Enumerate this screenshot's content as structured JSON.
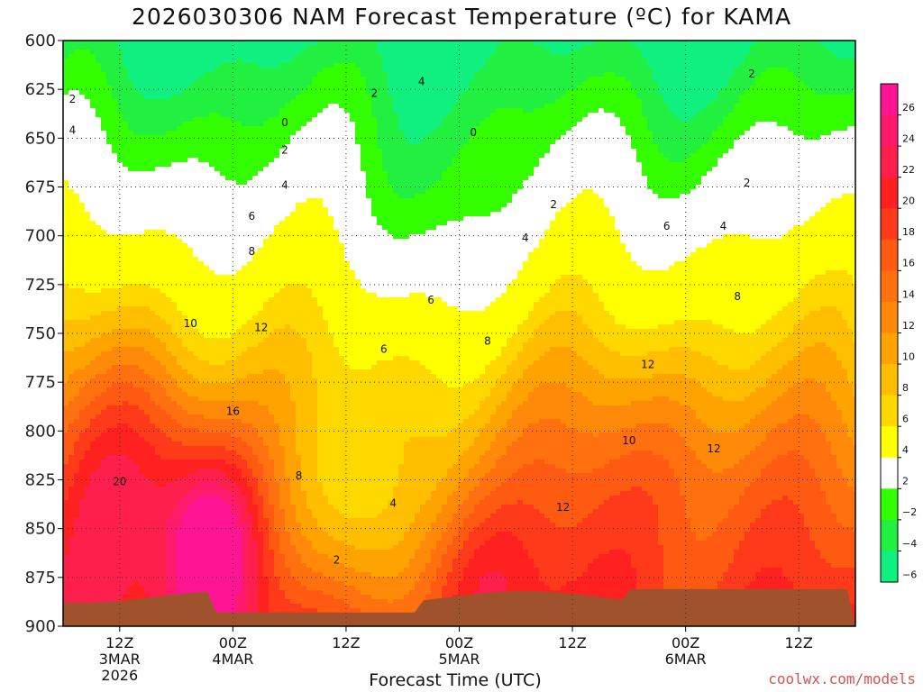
{
  "chart_data": {
    "type": "heatmap",
    "title": "2026030306 NAM Forecast Temperature (ºC) for KAMA",
    "xlabel": "Forecast Time (UTC)",
    "credit": "coolwx.com/models",
    "y_axis": {
      "ticks": [
        600,
        625,
        650,
        675,
        700,
        725,
        750,
        775,
        800,
        825,
        850,
        875,
        900
      ],
      "range": [
        600,
        900
      ]
    },
    "x_axis": {
      "range_hours": [
        6,
        90
      ],
      "ticks": [
        {
          "hour": 12,
          "lines": [
            "12Z",
            "3MAR",
            "2026"
          ]
        },
        {
          "hour": 24,
          "lines": [
            "00Z",
            "4MAR"
          ]
        },
        {
          "hour": 36,
          "lines": [
            "12Z"
          ]
        },
        {
          "hour": 48,
          "lines": [
            "00Z",
            "5MAR"
          ]
        },
        {
          "hour": 60,
          "lines": [
            "12Z"
          ]
        },
        {
          "hour": 72,
          "lines": [
            "00Z",
            "6MAR"
          ]
        },
        {
          "hour": 84,
          "lines": [
            "12Z"
          ]
        }
      ]
    },
    "colorbar": {
      "levels": [
        -6,
        -4,
        -2,
        2,
        4,
        6,
        8,
        10,
        12,
        14,
        16,
        18,
        20,
        22,
        24,
        26
      ],
      "labels": [
        "26",
        "24",
        "22",
        "20",
        "18",
        "16",
        "14",
        "12",
        "10",
        "8",
        "6",
        "4",
        "2",
        "−2",
        "−4",
        "−6"
      ],
      "colors": [
        "#ff1493",
        "#ff1a6c",
        "#ff1f4d",
        "#ff2020",
        "#ff3a1a",
        "#ff5a12",
        "#ff700e",
        "#ff8a0a",
        "#ffa300",
        "#ffbe00",
        "#ffd800",
        "#ffff00",
        "#ffffff",
        "#34ff00",
        "#22f040",
        "#10f080"
      ]
    },
    "contour_labels": [
      {
        "text": "0",
        "hour": 29.5,
        "p": 642
      },
      {
        "text": "0",
        "hour": 49.5,
        "p": 647
      },
      {
        "text": "2",
        "hour": 7,
        "p": 630
      },
      {
        "text": "2",
        "hour": 39,
        "p": 627
      },
      {
        "text": "2",
        "hour": 79,
        "p": 617
      },
      {
        "text": "4",
        "hour": 7,
        "p": 646
      },
      {
        "text": "4",
        "hour": 44,
        "p": 621
      },
      {
        "text": "2",
        "hour": 29.5,
        "p": 656
      },
      {
        "text": "4",
        "hour": 29.5,
        "p": 674
      },
      {
        "text": "2",
        "hour": 58,
        "p": 684
      },
      {
        "text": "2",
        "hour": 78.5,
        "p": 673
      },
      {
        "text": "6",
        "hour": 26,
        "p": 690
      },
      {
        "text": "4",
        "hour": 55,
        "p": 701
      },
      {
        "text": "6",
        "hour": 70,
        "p": 695
      },
      {
        "text": "4",
        "hour": 76,
        "p": 695
      },
      {
        "text": "8",
        "hour": 26,
        "p": 708
      },
      {
        "text": "6",
        "hour": 45,
        "p": 733
      },
      {
        "text": "8",
        "hour": 77.5,
        "p": 731
      },
      {
        "text": "10",
        "hour": 19.5,
        "p": 745
      },
      {
        "text": "12",
        "hour": 27,
        "p": 747
      },
      {
        "text": "8",
        "hour": 51,
        "p": 754
      },
      {
        "text": "6",
        "hour": 40,
        "p": 758
      },
      {
        "text": "12",
        "hour": 68,
        "p": 766
      },
      {
        "text": "16",
        "hour": 24,
        "p": 790
      },
      {
        "text": "10",
        "hour": 66,
        "p": 805
      },
      {
        "text": "12",
        "hour": 75,
        "p": 809
      },
      {
        "text": "20",
        "hour": 12,
        "p": 826
      },
      {
        "text": "8",
        "hour": 31,
        "p": 823
      },
      {
        "text": "4",
        "hour": 41,
        "p": 837
      },
      {
        "text": "12",
        "hour": 59,
        "p": 839
      },
      {
        "text": "2",
        "hour": 35,
        "p": 866
      }
    ]
  }
}
